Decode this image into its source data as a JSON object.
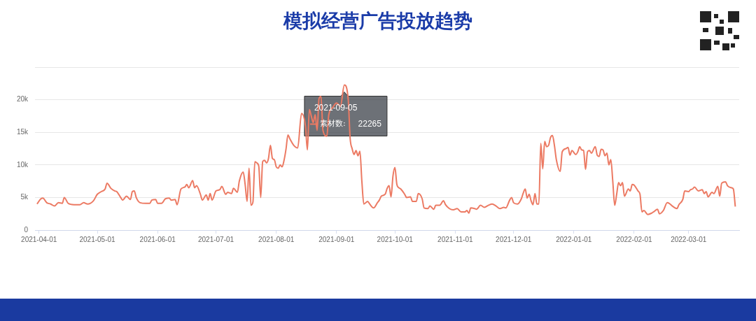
{
  "chart_data": {
    "type": "line",
    "title": "模拟经营广告投放趋势",
    "x": [
      "2021-03-31",
      "2021-04-02",
      "2021-04-03",
      "2021-04-05",
      "2021-04-07",
      "2021-04-09",
      "2021-04-11",
      "2021-04-13",
      "2021-04-14",
      "2021-04-16",
      "2021-04-19",
      "2021-04-22",
      "2021-04-24",
      "2021-04-26",
      "2021-04-29",
      "2021-05-01",
      "2021-05-03",
      "2021-05-05",
      "2021-05-06",
      "2021-05-08",
      "2021-05-10",
      "2021-05-11",
      "2021-05-13",
      "2021-05-14",
      "2021-05-16",
      "2021-05-18",
      "2021-05-19",
      "2021-05-20",
      "2021-05-21",
      "2021-05-23",
      "2021-05-26",
      "2021-05-28",
      "2021-05-29",
      "2021-05-31",
      "2021-06-01",
      "2021-06-03",
      "2021-06-05",
      "2021-06-07",
      "2021-06-08",
      "2021-06-10",
      "2021-06-11",
      "2021-06-13",
      "2021-06-15",
      "2021-06-16",
      "2021-06-17",
      "2021-06-19",
      "2021-06-20",
      "2021-06-21",
      "2021-06-23",
      "2021-06-24",
      "2021-06-26",
      "2021-06-27",
      "2021-06-28",
      "2021-06-29",
      "2021-07-01",
      "2021-07-03",
      "2021-07-04",
      "2021-07-06",
      "2021-07-07",
      "2021-07-09",
      "2021-07-10",
      "2021-07-12",
      "2021-07-13",
      "2021-07-15",
      "2021-07-16",
      "2021-07-17",
      "2021-07-18",
      "2021-07-19",
      "2021-07-20",
      "2021-07-21",
      "2021-07-22",
      "2021-07-23",
      "2021-07-24",
      "2021-07-25",
      "2021-07-26",
      "2021-07-27",
      "2021-07-28",
      "2021-07-29",
      "2021-07-30",
      "2021-07-31",
      "2021-08-01",
      "2021-08-02",
      "2021-08-03",
      "2021-08-04",
      "2021-08-05",
      "2021-08-06",
      "2021-08-07",
      "2021-08-08",
      "2021-08-10",
      "2021-08-12",
      "2021-08-14",
      "2021-08-16",
      "2021-08-17",
      "2021-08-18",
      "2021-08-19",
      "2021-08-20",
      "2021-08-21",
      "2021-08-22",
      "2021-08-23",
      "2021-08-24",
      "2021-08-25",
      "2021-08-27",
      "2021-08-28",
      "2021-08-30",
      "2021-09-01",
      "2021-09-03",
      "2021-09-05",
      "2021-09-07",
      "2021-09-08",
      "2021-09-09",
      "2021-09-10",
      "2021-09-11",
      "2021-09-12",
      "2021-09-13",
      "2021-09-14",
      "2021-09-15",
      "2021-09-17",
      "2021-09-18",
      "2021-09-20",
      "2021-09-22",
      "2021-09-23",
      "2021-09-24",
      "2021-09-26",
      "2021-09-27",
      "2021-09-28",
      "2021-09-29",
      "2021-09-30",
      "2021-10-01",
      "2021-10-02",
      "2021-10-03",
      "2021-10-04",
      "2021-10-06",
      "2021-10-07",
      "2021-10-09",
      "2021-10-10",
      "2021-10-12",
      "2021-10-13",
      "2021-10-15",
      "2021-10-16",
      "2021-10-18",
      "2021-10-19",
      "2021-10-21",
      "2021-10-22",
      "2021-10-24",
      "2021-10-26",
      "2021-10-27",
      "2021-10-29",
      "2021-10-31",
      "2021-11-02",
      "2021-11-04",
      "2021-11-06",
      "2021-11-07",
      "2021-11-08",
      "2021-11-09",
      "2021-11-11",
      "2021-11-12",
      "2021-11-14",
      "2021-11-16",
      "2021-11-18",
      "2021-11-20",
      "2021-11-22",
      "2021-11-24",
      "2021-11-26",
      "2021-11-27",
      "2021-11-29",
      "2021-11-30",
      "2021-12-01",
      "2021-12-03",
      "2021-12-05",
      "2021-12-06",
      "2021-12-07",
      "2021-12-08",
      "2021-12-09",
      "2021-12-10",
      "2021-12-11",
      "2021-12-12",
      "2021-12-13",
      "2021-12-14",
      "2021-12-15",
      "2021-12-16",
      "2021-12-17",
      "2021-12-18",
      "2021-12-19",
      "2021-12-20",
      "2021-12-21",
      "2021-12-22",
      "2021-12-23",
      "2021-12-25",
      "2021-12-26",
      "2021-12-28",
      "2021-12-29",
      "2021-12-30",
      "2021-12-31",
      "2022-01-02",
      "2022-01-03",
      "2022-01-04",
      "2022-01-05",
      "2022-01-06",
      "2022-01-07",
      "2022-01-08",
      "2022-01-09",
      "2022-01-10",
      "2022-01-12",
      "2022-01-13",
      "2022-01-14",
      "2022-01-15",
      "2022-01-16",
      "2022-01-17",
      "2022-01-18",
      "2022-01-19",
      "2022-01-20",
      "2022-01-21",
      "2022-01-22",
      "2022-01-23",
      "2022-01-24",
      "2022-01-25",
      "2022-01-26",
      "2022-01-27",
      "2022-01-29",
      "2022-01-30",
      "2022-01-31",
      "2022-02-01",
      "2022-02-03",
      "2022-02-04",
      "2022-02-05",
      "2022-02-06",
      "2022-02-08",
      "2022-02-10",
      "2022-02-11",
      "2022-02-13",
      "2022-02-14",
      "2022-02-16",
      "2022-02-18",
      "2022-02-19",
      "2022-02-21",
      "2022-02-23",
      "2022-02-24",
      "2022-02-26",
      "2022-02-27",
      "2022-03-01",
      "2022-03-02",
      "2022-03-03",
      "2022-03-04",
      "2022-03-06",
      "2022-03-08",
      "2022-03-09",
      "2022-03-10",
      "2022-03-11",
      "2022-03-13",
      "2022-03-14",
      "2022-03-16",
      "2022-03-17",
      "2022-03-18",
      "2022-03-20",
      "2022-03-21",
      "2022-03-23",
      "2022-03-24",
      "2022-03-25"
    ],
    "series": [
      {
        "name": "素材数:",
        "color": "#ec7a63",
        "values": [
          4000,
          4800,
          4900,
          4200,
          4000,
          3700,
          4200,
          4100,
          5000,
          4100,
          3900,
          3900,
          4200,
          4000,
          4500,
          5500,
          5900,
          6300,
          7200,
          6400,
          6000,
          5900,
          5000,
          4600,
          5200,
          4700,
          5900,
          6000,
          5000,
          4200,
          4100,
          4100,
          4600,
          4700,
          4100,
          4100,
          4800,
          4900,
          4600,
          4700,
          3900,
          6300,
          6600,
          7000,
          6500,
          7600,
          6500,
          6800,
          5500,
          4600,
          5400,
          4600,
          5600,
          4600,
          6000,
          6200,
          6700,
          5500,
          5800,
          5600,
          6400,
          5800,
          7500,
          8900,
          7000,
          4400,
          9500,
          3800,
          4300,
          10500,
          10300,
          9800,
          5000,
          10500,
          10700,
          10300,
          11000,
          13000,
          11000,
          10800,
          9700,
          9500,
          10000,
          9700,
          10700,
          12400,
          14600,
          14000,
          13000,
          12600,
          17900,
          16000,
          12300,
          18500,
          17500,
          16500,
          17700,
          15300,
          20200,
          20500,
          15300,
          14400,
          17700,
          18800,
          19500,
          19000,
          22265,
          20000,
          14000,
          12500,
          11600,
          12200,
          11400,
          12100,
          7500,
          4000,
          4400,
          4000,
          3400,
          4200,
          4600,
          5200,
          5500,
          6400,
          6800,
          5100,
          8300,
          9600,
          7000,
          6500,
          6300,
          5500,
          5000,
          5100,
          4400,
          4400,
          5600,
          4800,
          3400,
          3300,
          3700,
          3200,
          3800,
          3800,
          4500,
          3900,
          3300,
          3100,
          3300,
          2800,
          2800,
          3000,
          2600,
          3400,
          3300,
          3200,
          3800,
          3500,
          3800,
          4000,
          3700,
          3300,
          3500,
          3400,
          4600,
          5000,
          4200,
          4000,
          4800,
          5700,
          6300,
          4900,
          5500,
          4500,
          3900,
          5600,
          4000,
          4000,
          13300,
          9400,
          13600,
          12800,
          13000,
          14200,
          14500,
          13000,
          10800,
          9000,
          12000,
          12500,
          12700,
          11500,
          12200,
          11600,
          12000,
          12800,
          12300,
          12200,
          9300,
          12000,
          12200,
          11800,
          12800,
          11500,
          11300,
          12400,
          12300,
          11400,
          11800,
          10000,
          10800,
          7500,
          3800,
          5500,
          7300,
          6800,
          7300,
          5200,
          6300,
          6000,
          7000,
          6900,
          6000,
          5500,
          2800,
          3000,
          2400,
          2600,
          2800,
          3200,
          2500,
          3000,
          4200,
          4100,
          3600,
          3300,
          3900,
          4700,
          6000,
          5900,
          6200,
          6300,
          6600,
          6000,
          6200,
          5600,
          5900,
          5100,
          5800,
          5600,
          6700,
          5200,
          7200,
          7400,
          6800,
          6500,
          6300,
          3600
        ]
      }
    ],
    "xlim": [
      "2021-03-30",
      "2022-03-27"
    ],
    "xticks": [
      {
        "value": "2021-04-01",
        "label": "2021-04-01"
      },
      {
        "value": "2021-05-01",
        "label": "2021-05-01"
      },
      {
        "value": "2021-06-01",
        "label": "2021-06-01"
      },
      {
        "value": "2021-07-01",
        "label": "2021-07-01"
      },
      {
        "value": "2021-08-01",
        "label": "2021-08-01"
      },
      {
        "value": "2021-09-01",
        "label": "2021-09-01"
      },
      {
        "value": "2021-10-01",
        "label": "2021-10-01"
      },
      {
        "value": "2021-11-01",
        "label": "2021-11-01"
      },
      {
        "value": "2021-12-01",
        "label": "2021-12-01"
      },
      {
        "value": "2022-01-01",
        "label": "2022-01-01"
      },
      {
        "value": "2022-02-01",
        "label": "2022-02-01"
      },
      {
        "value": "2022-03-01",
        "label": "2022-03-01"
      }
    ],
    "ylim": [
      0,
      25000
    ],
    "yticks": [
      0,
      {
        "value": 5000,
        "label": "5k"
      },
      {
        "value": 10000,
        "label": "10k"
      },
      {
        "value": 15000,
        "label": "15k"
      },
      {
        "value": 20000,
        "label": "20k"
      },
      {
        "value": 25000,
        "label": null
      }
    ],
    "grid": "y",
    "marker": "none",
    "line_style": "solid",
    "annotations": [
      {
        "text": "2021-09-05",
        "x": "2021-09-05",
        "y": 22265
      },
      "22265"
    ]
  }
}
